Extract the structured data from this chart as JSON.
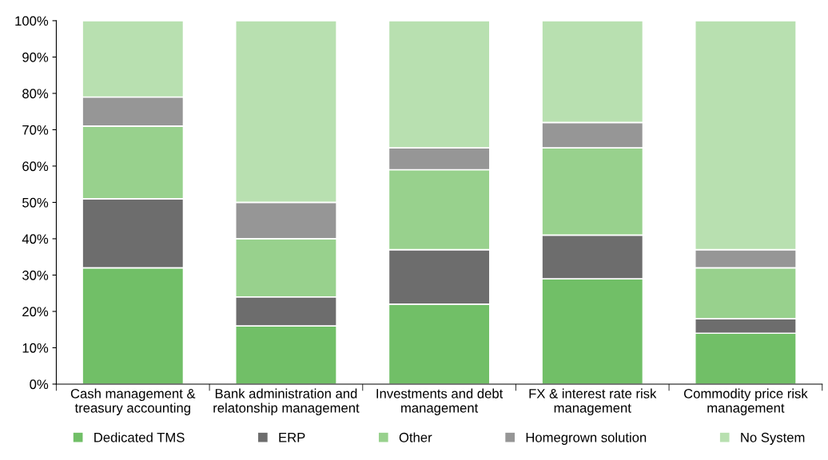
{
  "chart_data": {
    "type": "bar",
    "stacked": true,
    "categories": [
      "Cash management &\ntreasury accounting",
      "Bank administration and\nrelatonship management",
      "Investments and debt\nmanagement",
      "FX & interest rate risk\nmanagement",
      "Commodity price risk\nmanagement"
    ],
    "series": [
      {
        "name": "Dedicated TMS",
        "color": "#71bf67",
        "values": [
          32,
          16,
          22,
          29,
          14
        ]
      },
      {
        "name": "ERP",
        "color": "#6d6d6d",
        "values": [
          19,
          8,
          15,
          12,
          4
        ]
      },
      {
        "name": "Other",
        "color": "#98d18d",
        "values": [
          20,
          16,
          22,
          24,
          14
        ]
      },
      {
        "name": "Homegrown solution",
        "color": "#969696",
        "values": [
          8,
          10,
          6,
          7,
          5
        ]
      },
      {
        "name": "No System",
        "color": "#b8e0b0",
        "values": [
          21,
          50,
          35,
          28,
          63
        ]
      }
    ],
    "ylim": [
      0,
      100
    ],
    "yticks": [
      {
        "value": 0,
        "label": "0%"
      },
      {
        "value": 10,
        "label": "10%"
      },
      {
        "value": 20,
        "label": "20%"
      },
      {
        "value": 30,
        "label": "30%"
      },
      {
        "value": 40,
        "label": "40%"
      },
      {
        "value": 50,
        "label": "50%"
      },
      {
        "value": 60,
        "label": "60%"
      },
      {
        "value": 70,
        "label": "70%"
      },
      {
        "value": 80,
        "label": "80%"
      },
      {
        "value": 90,
        "label": "90%"
      },
      {
        "value": 100,
        "label": "100%"
      }
    ],
    "grid": false,
    "legend": "bottom"
  }
}
